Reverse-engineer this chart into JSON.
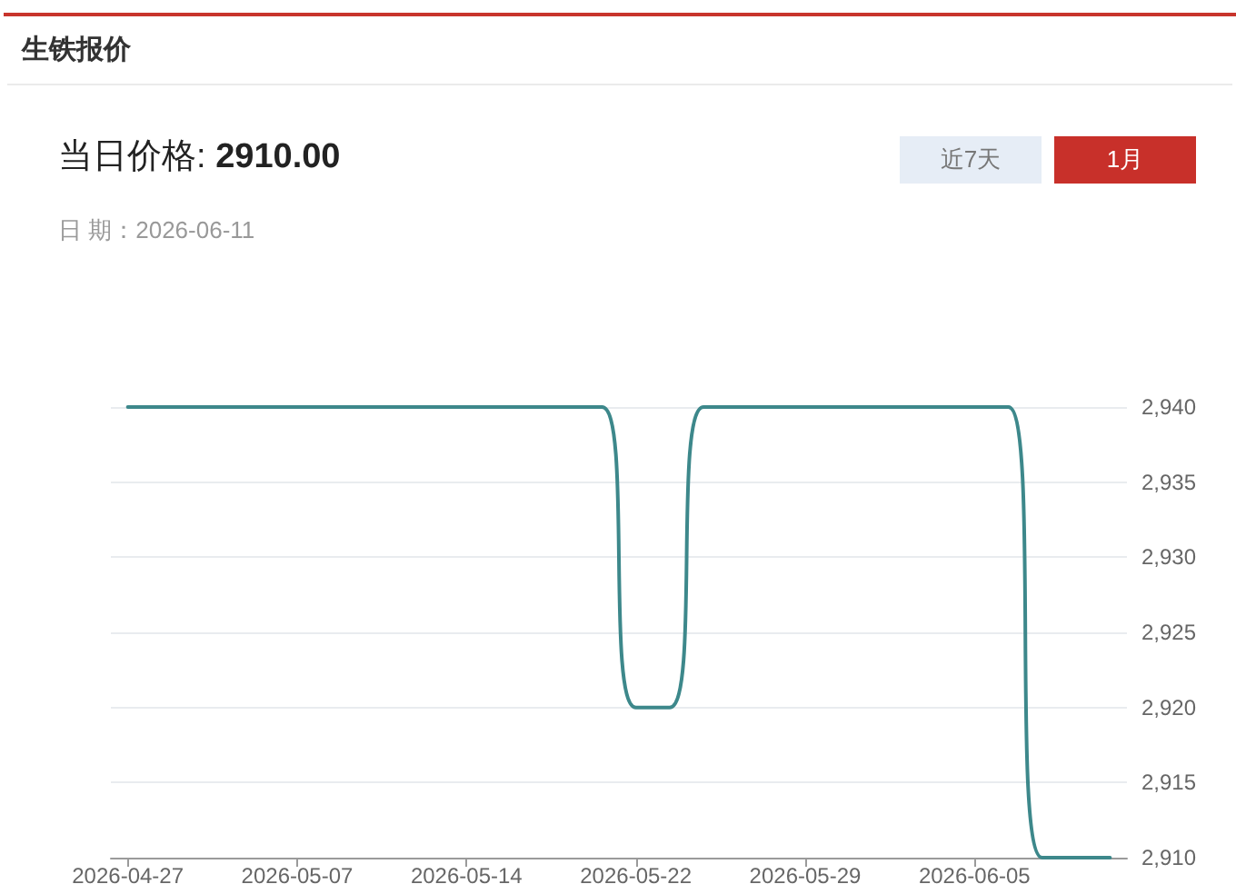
{
  "chart_data": {
    "type": "line",
    "title": "生铁报价",
    "subtitle": "当日价格: 2910.00",
    "annotations": [
      "日 期：2026-06-11",
      "近7天",
      "1月"
    ],
    "categories": [
      "2026-04-27",
      null,
      null,
      null,
      null,
      "2026-05-07",
      null,
      null,
      null,
      null,
      "2026-05-14",
      null,
      null,
      null,
      null,
      "2026-05-22",
      null,
      null,
      null,
      null,
      "2026-05-29",
      null,
      null,
      null,
      null,
      "2026-06-05",
      null,
      null,
      null,
      null
    ],
    "series": [
      {
        "color": "#3d888b",
        "values": [
          2940,
          2940,
          2940,
          2940,
          2940,
          2940,
          2940,
          2940,
          2940,
          2940,
          2940,
          2940,
          2940,
          2940,
          2940,
          2920,
          2920,
          2940,
          2940,
          2940,
          2940,
          2940,
          2940,
          2940,
          2940,
          2940,
          2940,
          2910,
          2910,
          2910
        ]
      }
    ],
    "ylim": [
      2910,
      2940
    ],
    "yticks": [
      {
        "value": 2910,
        "label": "2,910"
      },
      {
        "value": 2915,
        "label": "2,915"
      },
      {
        "value": 2920,
        "label": "2,920"
      },
      {
        "value": 2925,
        "label": "2,925"
      },
      {
        "value": 2930,
        "label": "2,930"
      },
      {
        "value": 2935,
        "label": "2,935"
      },
      {
        "value": 2940,
        "label": "2,940"
      }
    ],
    "grid": "y",
    "marker": "none",
    "line_style": "solid"
  }
}
